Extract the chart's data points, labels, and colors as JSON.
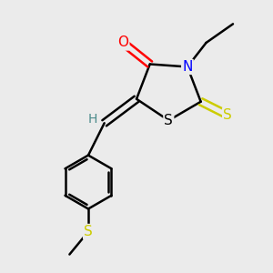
{
  "background_color": "#ebebeb",
  "bond_color": "#000000",
  "bond_width": 1.8,
  "atom_colors": {
    "O": "#ff0000",
    "N": "#0000ff",
    "S_thioxo": "#cccc00",
    "S_ring": "#000000",
    "S_sulfide": "#cccc00",
    "H": "#4a8a8a",
    "C": "#000000"
  },
  "font_size": 11,
  "fig_bg": "#ebebeb",
  "xlim": [
    0,
    10
  ],
  "ylim": [
    0,
    10
  ]
}
